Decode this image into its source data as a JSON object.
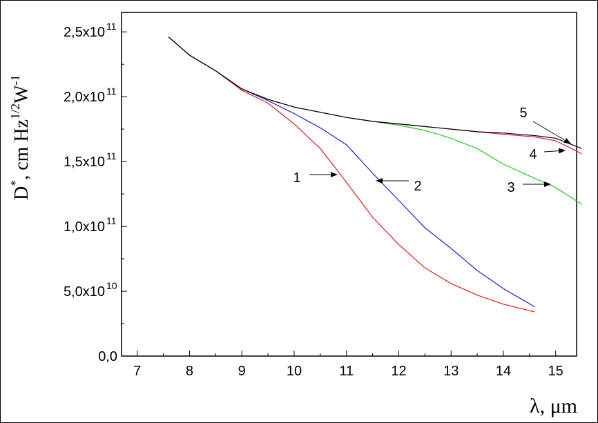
{
  "chart_data": {
    "type": "line",
    "x_label": "λ, μm",
    "y_label": {
      "symbol": "D",
      "symbol_sup": "*",
      "unit": ", cm Hz",
      "unit_sup": "1/2",
      "unit2": "W",
      "unit2_sup": "-1"
    },
    "x": [
      7.6,
      8,
      8.5,
      9,
      9.5,
      10,
      10.5,
      11,
      11.5,
      12,
      12.5,
      13,
      13.5,
      14,
      14.6,
      15,
      15.5
    ],
    "series": [
      {
        "name": "1",
        "color": "#e01818",
        "values": [
          246000000000.0,
          232000000000.0,
          220000000000.0,
          205000000000.0,
          195000000000.0,
          179000000000.0,
          160000000000.0,
          134000000000.0,
          107000000000.0,
          86000000000.0,
          68000000000.0,
          56000000000.0,
          47000000000.0,
          40000000000.0,
          34000000000.0,
          null,
          null
        ]
      },
      {
        "name": "2",
        "color": "#1a1ae0",
        "values": [
          246000000000.0,
          232000000000.0,
          220000000000.0,
          206000000000.0,
          197000000000.0,
          187000000000.0,
          176000000000.0,
          163000000000.0,
          141000000000.0,
          120000000000.0,
          99000000000.0,
          83000000000.0,
          66000000000.0,
          52000000000.0,
          38000000000.0,
          null,
          null
        ]
      },
      {
        "name": "3",
        "color": "#18d018",
        "values": [
          246000000000.0,
          232000000000.0,
          220000000000.0,
          206000000000.0,
          198000000000.0,
          192000000000.0,
          188000000000.0,
          184000000000.0,
          181000000000.0,
          178000000000.0,
          174000000000.0,
          168000000000.0,
          160000000000.0,
          148000000000.0,
          137000000000.0,
          130000000000.0,
          117000000000.0
        ]
      },
      {
        "name": "4",
        "color": "#d0187a",
        "values": [
          246000000000.0,
          232000000000.0,
          220000000000.0,
          206000000000.0,
          198000000000.0,
          192000000000.0,
          188000000000.0,
          184000000000.0,
          181000000000.0,
          179000000000.0,
          177000000000.0,
          175000000000.0,
          173000000000.0,
          171000000000.0,
          169000000000.0,
          166000000000.0,
          156000000000.0
        ]
      },
      {
        "name": "5",
        "color": "#000000",
        "values": [
          246000000000.0,
          232000000000.0,
          220000000000.0,
          206000000000.0,
          198000000000.0,
          192000000000.0,
          188000000000.0,
          184000000000.0,
          181000000000.0,
          179000000000.0,
          177000000000.0,
          175000000000.0,
          173000000000.0,
          172000000000.0,
          170000000000.0,
          168000000000.0,
          160000000000.0
        ]
      }
    ],
    "xlim": [
      6.7,
      15.4
    ],
    "ylim": [
      0,
      265000000000.0
    ],
    "xticks": [
      7,
      8,
      9,
      10,
      11,
      12,
      13,
      14,
      15
    ],
    "yticks": [
      {
        "value": 0,
        "label": "0,0"
      },
      {
        "value": 50000000000.0,
        "label": "5,0x10",
        "exponent": "10"
      },
      {
        "value": 100000000000.0,
        "label": "1,0x10",
        "exponent": "11"
      },
      {
        "value": 150000000000.0,
        "label": "1,5x10",
        "exponent": "11"
      },
      {
        "value": 200000000000.0,
        "label": "2,0x10",
        "exponent": "11"
      },
      {
        "value": 250000000000.0,
        "label": "2,5x10",
        "exponent": "11"
      }
    ],
    "annotations": [
      "1",
      "2",
      "3",
      "4",
      "5"
    ]
  }
}
